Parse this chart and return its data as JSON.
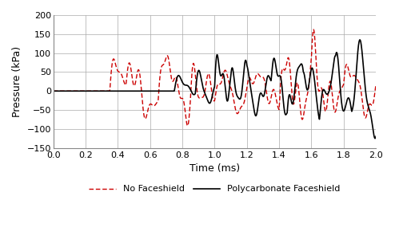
{
  "title": "",
  "xlabel": "Time (ms)",
  "ylabel": "Pressure (kPa)",
  "xlim": [
    0,
    2
  ],
  "ylim": [
    -150,
    200
  ],
  "xticks": [
    0,
    0.2,
    0.4,
    0.6,
    0.8,
    1.0,
    1.2,
    1.4,
    1.6,
    1.8,
    2.0
  ],
  "yticks": [
    -150,
    -100,
    -50,
    0,
    50,
    100,
    150,
    200
  ],
  "line1_color": "#cc0000",
  "line2_color": "#000000",
  "line1_label": "No Faceshield",
  "line2_label": "Polycarbonate Faceshield",
  "background_color": "#ffffff",
  "grid_color": "#aaaaaa",
  "figsize": [
    4.94,
    3.0
  ],
  "dpi": 100
}
